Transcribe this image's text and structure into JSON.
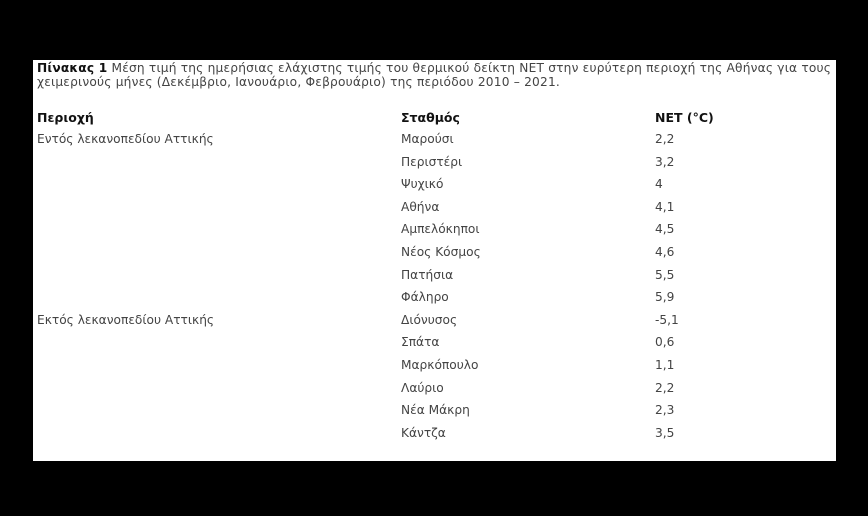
{
  "caption": {
    "label": "Πίνακας 1",
    "text": "Μέση τιμή της ημερήσιας ελάχιστης τιμής του θερμικού δείκτη NET στην ευρύτερη περιοχή της Αθήνας για τους χειμερινούς μήνες (Δεκέμβριο, Ιανουάριο, Φεβρουάριο) της περιόδου 2010 – 2021."
  },
  "table": {
    "headers": [
      "Περιοχή",
      "Σταθμός",
      "NET (°C)"
    ],
    "rows": [
      {
        "region": "Εντός λεκανοπεδίου Αττικής",
        "station": "Μαρούσι",
        "net": "2,2"
      },
      {
        "region": "",
        "station": "Περιστέρι",
        "net": "3,2"
      },
      {
        "region": "",
        "station": "Ψυχικό",
        "net": "4"
      },
      {
        "region": "",
        "station": "Αθήνα",
        "net": "4,1"
      },
      {
        "region": "",
        "station": "Αμπελόκηποι",
        "net": "4,5"
      },
      {
        "region": "",
        "station": "Νέος Κόσμος",
        "net": "4,6"
      },
      {
        "region": "",
        "station": "Πατήσια",
        "net": "5,5"
      },
      {
        "region": "",
        "station": "Φάληρο",
        "net": "5,9"
      },
      {
        "region": "Εκτός λεκανοπεδίου Αττικής",
        "station": "Διόνυσος",
        "net": "-5,1"
      },
      {
        "region": "",
        "station": "Σπάτα",
        "net": "0,6"
      },
      {
        "region": "",
        "station": "Μαρκόπουλο",
        "net": "1,1"
      },
      {
        "region": "",
        "station": "Λαύριο",
        "net": "2,2"
      },
      {
        "region": "",
        "station": "Νέα Μάκρη",
        "net": "2,3"
      },
      {
        "region": "",
        "station": "Κάντζα",
        "net": "3,5"
      }
    ]
  }
}
